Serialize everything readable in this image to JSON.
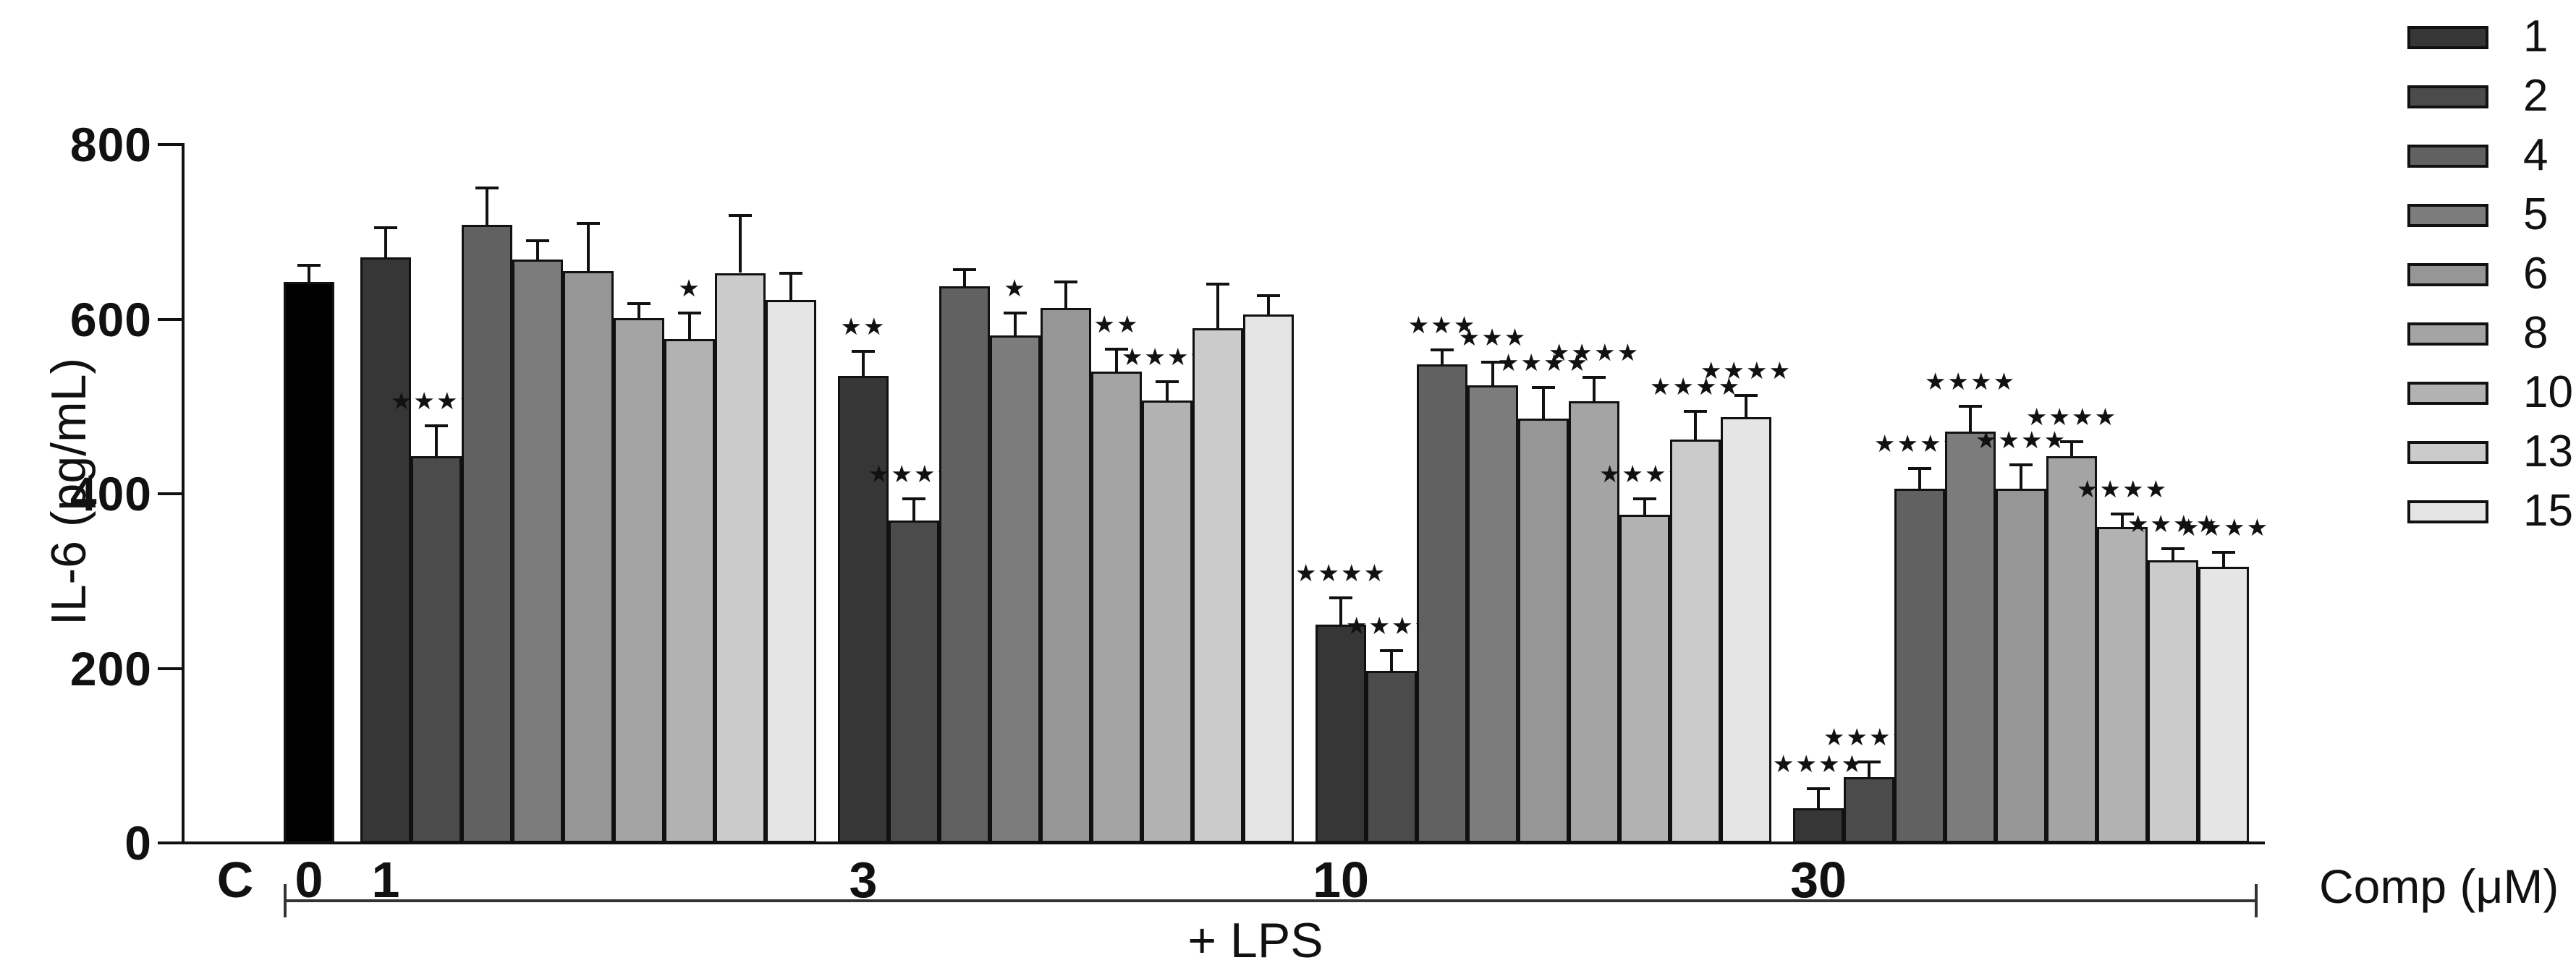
{
  "figure": {
    "y_axis": {
      "label": "IL-6 (pg/mL)",
      "ticks": [
        0,
        200,
        400,
        600,
        800
      ],
      "max": 800
    },
    "x_axis": {
      "unit_label": "Comp (μM)",
      "group_labels": [
        "C",
        "0",
        "1",
        "3",
        "10",
        "30"
      ]
    },
    "annotations": {
      "lps": "+ LPS"
    },
    "colors": {
      "control_bar": "#000000",
      "axis": "#111111",
      "background": "#ffffff"
    }
  },
  "chart_data": {
    "type": "bar",
    "title": "",
    "ylabel": "IL-6 (pg/mL)",
    "xlabel": "Comp (μM)",
    "ylim": [
      0,
      800
    ],
    "yticks": [
      0,
      200,
      400,
      600,
      800
    ],
    "grid": false,
    "legend_position": "top-right",
    "legend_entries": [
      {
        "label": "1",
        "color": "#363636"
      },
      {
        "label": "2",
        "color": "#4b4b4b"
      },
      {
        "label": "4",
        "color": "#616161"
      },
      {
        "label": "5",
        "color": "#7c7c7c"
      },
      {
        "label": "6",
        "color": "#969696"
      },
      {
        "label": "8",
        "color": "#a4a4a4"
      },
      {
        "label": "10",
        "color": "#b2b2b2"
      },
      {
        "label": "13",
        "color": "#cbcbcb"
      },
      {
        "label": "15",
        "color": "#e5e5e5"
      }
    ],
    "x_groups": [
      {
        "label": "C",
        "bars": []
      },
      {
        "label": "0",
        "bars": [
          {
            "series": "LPS",
            "value": 643,
            "error": 19,
            "sig": "",
            "color": "#000000"
          }
        ]
      },
      {
        "label": "1",
        "bars": [
          {
            "series": "1",
            "value": 671,
            "error": 34,
            "sig": ""
          },
          {
            "series": "2",
            "value": 443,
            "error": 35,
            "sig": "****"
          },
          {
            "series": "4",
            "value": 708,
            "error": 42,
            "sig": ""
          },
          {
            "series": "5",
            "value": 668,
            "error": 22,
            "sig": ""
          },
          {
            "series": "6",
            "value": 655,
            "error": 55,
            "sig": ""
          },
          {
            "series": "8",
            "value": 601,
            "error": 17,
            "sig": ""
          },
          {
            "series": "10",
            "value": 577,
            "error": 30,
            "sig": "*"
          },
          {
            "series": "13",
            "value": 653,
            "error": 66,
            "sig": ""
          },
          {
            "series": "15",
            "value": 622,
            "error": 31,
            "sig": ""
          }
        ]
      },
      {
        "label": "3",
        "bars": [
          {
            "series": "1",
            "value": 535,
            "error": 28,
            "sig": "**"
          },
          {
            "series": "2",
            "value": 369,
            "error": 25,
            "sig": "****"
          },
          {
            "series": "4",
            "value": 638,
            "error": 19,
            "sig": ""
          },
          {
            "series": "5",
            "value": 581,
            "error": 26,
            "sig": "*"
          },
          {
            "series": "6",
            "value": 613,
            "error": 30,
            "sig": ""
          },
          {
            "series": "8",
            "value": 540,
            "error": 26,
            "sig": "**"
          },
          {
            "series": "10",
            "value": 507,
            "error": 21,
            "sig": "****"
          },
          {
            "series": "13",
            "value": 590,
            "error": 50,
            "sig": ""
          },
          {
            "series": "15",
            "value": 605,
            "error": 22,
            "sig": ""
          }
        ]
      },
      {
        "label": "10",
        "bars": [
          {
            "series": "1",
            "value": 250,
            "error": 31,
            "sig": "****"
          },
          {
            "series": "2",
            "value": 197,
            "error": 23,
            "sig": "****"
          },
          {
            "series": "4",
            "value": 548,
            "error": 17,
            "sig": "***"
          },
          {
            "series": "5",
            "value": 524,
            "error": 27,
            "sig": "***"
          },
          {
            "series": "6",
            "value": 486,
            "error": 36,
            "sig": "****"
          },
          {
            "series": "8",
            "value": 506,
            "error": 27,
            "sig": "****"
          },
          {
            "series": "10",
            "value": 376,
            "error": 18,
            "sig": "****"
          },
          {
            "series": "13",
            "value": 462,
            "error": 32,
            "sig": "****"
          },
          {
            "series": "15",
            "value": 488,
            "error": 25,
            "sig": "****"
          }
        ]
      },
      {
        "label": "30",
        "bars": [
          {
            "series": "1",
            "value": 40,
            "error": 22,
            "sig": "****"
          },
          {
            "series": "2",
            "value": 75,
            "error": 18,
            "sig": "****"
          },
          {
            "series": "4",
            "value": 406,
            "error": 23,
            "sig": "****"
          },
          {
            "series": "5",
            "value": 471,
            "error": 29,
            "sig": "****"
          },
          {
            "series": "6",
            "value": 406,
            "error": 27,
            "sig": "****"
          },
          {
            "series": "8",
            "value": 443,
            "error": 17,
            "sig": "****"
          },
          {
            "series": "10",
            "value": 362,
            "error": 15,
            "sig": "****"
          },
          {
            "series": "13",
            "value": 324,
            "error": 13,
            "sig": "****"
          },
          {
            "series": "15",
            "value": 316,
            "error": 17,
            "sig": "****"
          }
        ]
      }
    ]
  }
}
